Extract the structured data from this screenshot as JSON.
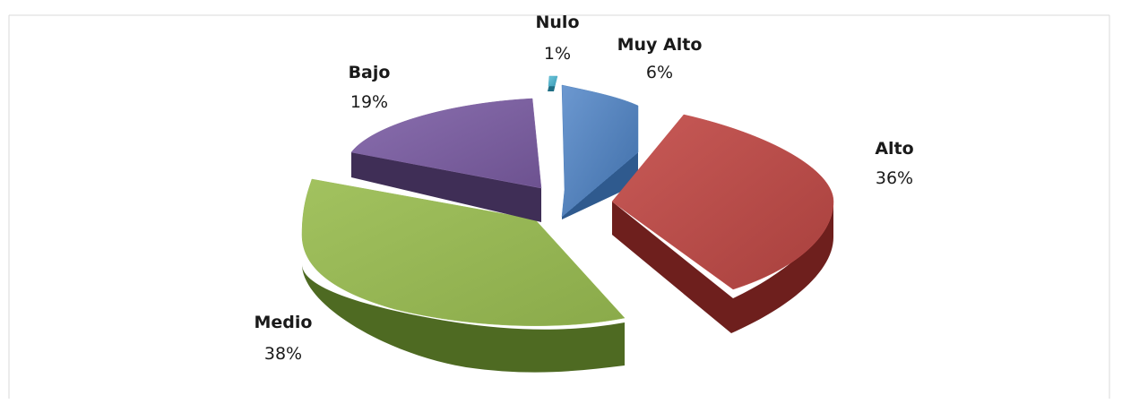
{
  "chart_data": {
    "type": "pie",
    "style": "3d-exploded",
    "title": "",
    "slices": [
      {
        "name": "Muy Alto",
        "value": 6,
        "label": "6%",
        "color": "#4F81BD",
        "side_color": "#2F5A8E"
      },
      {
        "name": "Alto",
        "value": 36,
        "label": "36%",
        "color": "#C0504D",
        "side_color": "#6E1F1D"
      },
      {
        "name": "Medio",
        "value": 38,
        "label": "38%",
        "color": "#9BBB59",
        "side_color": "#4E6A22"
      },
      {
        "name": "Bajo",
        "value": 19,
        "label": "19%",
        "color": "#8064A2",
        "side_color": "#3F2E56"
      },
      {
        "name": "Nulo",
        "value": 1,
        "label": "1%",
        "color": "#4BACC6",
        "side_color": "#1F6E84"
      }
    ]
  }
}
